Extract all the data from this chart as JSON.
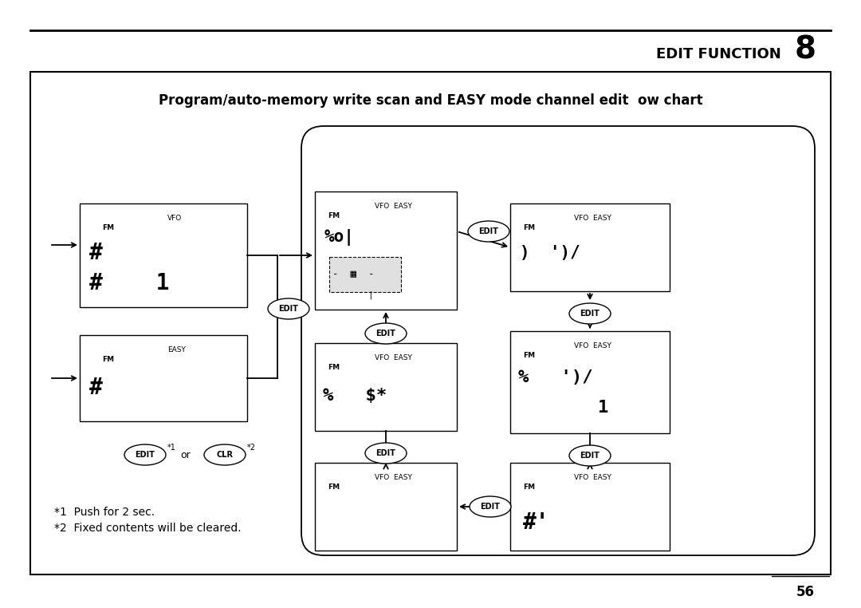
{
  "title_text": "EDIT FUNCTION",
  "title_num": "8",
  "page_num": "56",
  "main_title": "Program/auto-memory write scan and EASY mode channel edit  ow chart",
  "bg_color": "#ffffff",
  "footnote1": "*1  Push for 2 sec.",
  "footnote2": "*2  Fixed contents will be cleared."
}
